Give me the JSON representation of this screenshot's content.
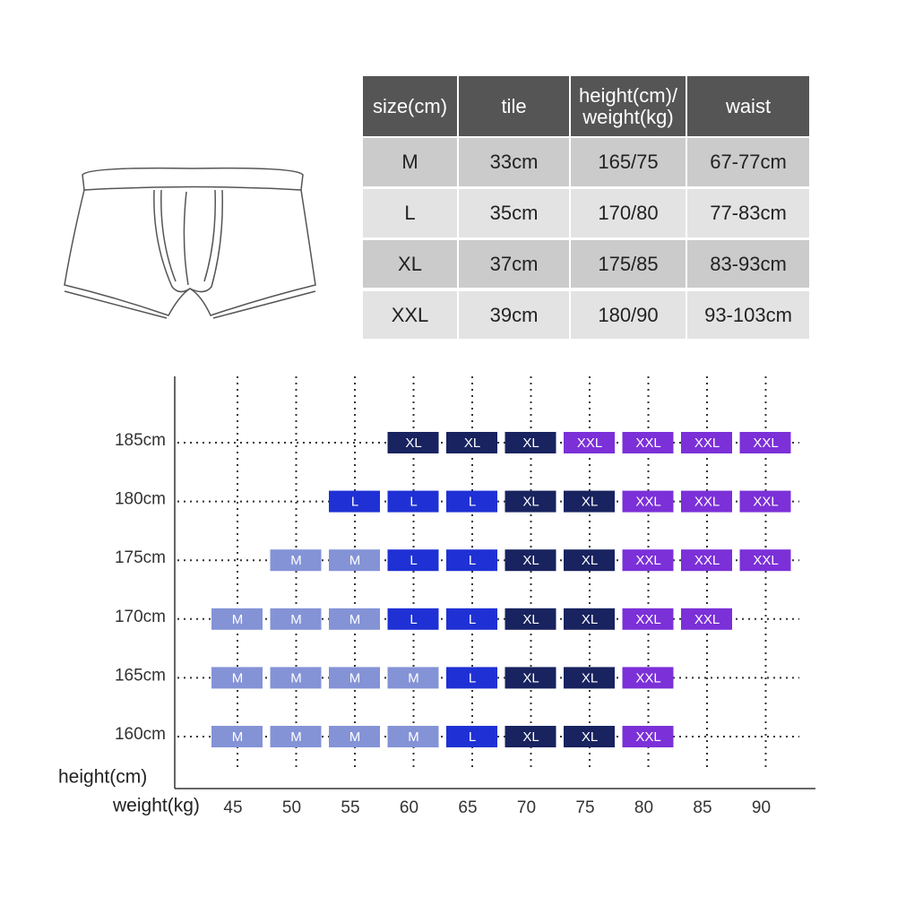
{
  "table": {
    "header": [
      "size(cm)",
      "tile",
      "height(cm)/\nweight(kg)",
      "waist"
    ],
    "rows": [
      [
        "M",
        "33cm",
        "165/75",
        "67-77cm"
      ],
      [
        "L",
        "35cm",
        "170/80",
        "77-83cm"
      ],
      [
        "XL",
        "37cm",
        "175/85",
        "83-93cm"
      ],
      [
        "XXL",
        "39cm",
        "180/90",
        "93-103cm"
      ]
    ]
  },
  "grid": {
    "y_label": "height(cm)",
    "x_label": "weight(kg)",
    "heights": [
      "185cm",
      "180cm",
      "175cm",
      "170cm",
      "165cm",
      "160cm"
    ],
    "weights": [
      45,
      50,
      55,
      60,
      65,
      70,
      75,
      80,
      85,
      90
    ],
    "colors": {
      "M": "#8493d6",
      "L": "#1f31d4",
      "XL": "#18235f",
      "XXL": "#7b30d8"
    },
    "cells": [
      [
        null,
        null,
        null,
        "XL",
        "XL",
        "XL",
        "XXL",
        "XXL",
        "XXL",
        "XXL"
      ],
      [
        null,
        null,
        "L",
        "L",
        "L",
        "XL",
        "XL",
        "XXL",
        "XXL",
        "XXL"
      ],
      [
        null,
        "M",
        "M",
        "L",
        "L",
        "XL",
        "XL",
        "XXL",
        "XXL",
        "XXL"
      ],
      [
        "M",
        "M",
        "M",
        "L",
        "L",
        "XL",
        "XL",
        "XXL",
        "XXL",
        null
      ],
      [
        "M",
        "M",
        "M",
        "M",
        "L",
        "XL",
        "XL",
        "XXL",
        null,
        null
      ],
      [
        "M",
        "M",
        "M",
        "M",
        "L",
        "XL",
        "XL",
        "XXL",
        null,
        null
      ]
    ]
  }
}
